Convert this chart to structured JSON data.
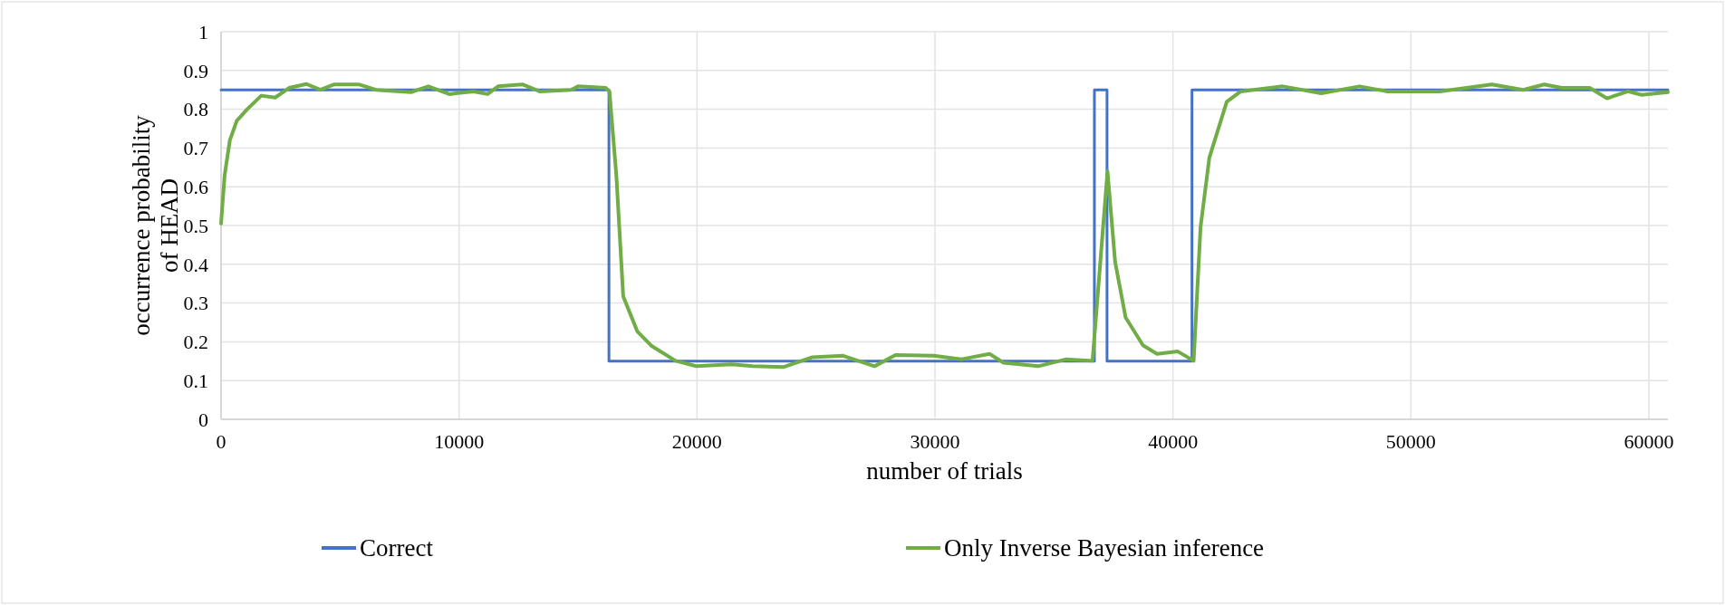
{
  "chart_data": {
    "type": "line",
    "xlabel": "number of trials",
    "ylabel": "occurrence probability of HEAD",
    "xlim": [
      0,
      60800
    ],
    "xticks": [
      0,
      10000,
      20000,
      30000,
      40000,
      50000,
      60000
    ],
    "ylim": [
      0,
      1
    ],
    "yticks": [
      0,
      0.1,
      0.2,
      0.3,
      0.4,
      0.5,
      0.6,
      0.7,
      0.8,
      0.9,
      1
    ],
    "grid": true,
    "legend": "bottom",
    "line_style": "solid",
    "marker": "none",
    "series": [
      {
        "name": "Correct",
        "color": "#4472c4",
        "x": [
          0,
          16300,
          16300,
          36700,
          36700,
          37230,
          37230,
          40800,
          40800,
          60800
        ],
        "values": [
          0.85,
          0.85,
          0.15,
          0.15,
          0.85,
          0.85,
          0.15,
          0.15,
          0.85,
          0.85
        ]
      },
      {
        "name": "Only Inverse Bayesian inference",
        "color": "#70ad47",
        "x": [
          0,
          150,
          370,
          660,
          1100,
          1690,
          2270,
          2860,
          3590,
          4170,
          4760,
          5780,
          6510,
          7980,
          8710,
          9590,
          10610,
          11200,
          11640,
          12660,
          13390,
          14710,
          15000,
          16170,
          16320,
          16610,
          16900,
          17490,
          18080,
          19100,
          19980,
          21450,
          22330,
          23650,
          24820,
          26140,
          27460,
          28340,
          29950,
          31120,
          32290,
          32880,
          34340,
          35520,
          36620,
          37250,
          37570,
          38010,
          38740,
          39330,
          40210,
          40870,
          41160,
          41530,
          42260,
          42850,
          44620,
          46230,
          47840,
          49010,
          51210,
          53400,
          54720,
          55600,
          56340,
          57510,
          58240,
          59120,
          59700,
          60800
        ],
        "values": [
          0.505,
          0.63,
          0.72,
          0.77,
          0.8,
          0.835,
          0.83,
          0.855,
          0.865,
          0.85,
          0.864,
          0.864,
          0.85,
          0.844,
          0.859,
          0.839,
          0.846,
          0.839,
          0.859,
          0.864,
          0.846,
          0.85,
          0.859,
          0.855,
          0.846,
          0.63,
          0.317,
          0.227,
          0.19,
          0.151,
          0.137,
          0.142,
          0.137,
          0.135,
          0.16,
          0.164,
          0.137,
          0.166,
          0.164,
          0.155,
          0.169,
          0.146,
          0.137,
          0.155,
          0.151,
          0.64,
          0.406,
          0.263,
          0.191,
          0.169,
          0.175,
          0.151,
          0.496,
          0.675,
          0.819,
          0.846,
          0.859,
          0.841,
          0.859,
          0.846,
          0.846,
          0.864,
          0.85,
          0.864,
          0.855,
          0.855,
          0.828,
          0.846,
          0.837,
          0.844
        ]
      }
    ]
  }
}
